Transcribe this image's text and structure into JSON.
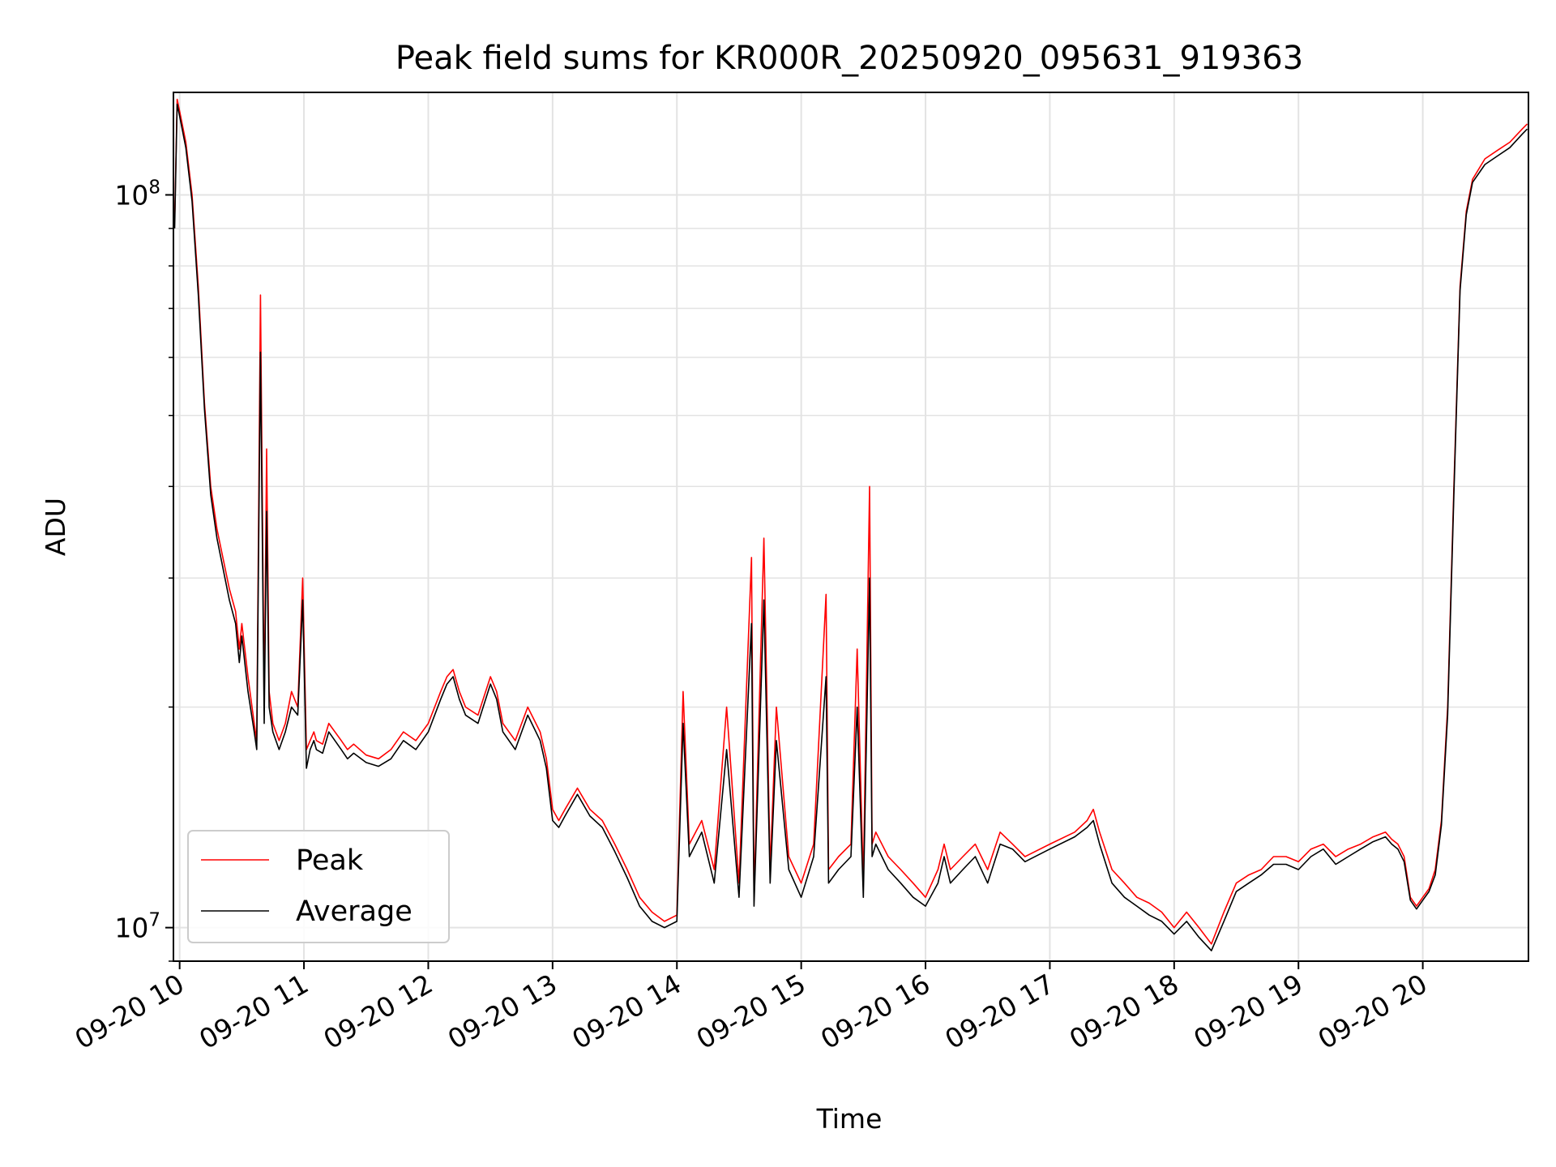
{
  "chart_data": {
    "type": "line",
    "title": "Peak field sums for KR000R_20250920_095631_919363",
    "xlabel": "Time",
    "ylabel": "ADU",
    "yscale": "log",
    "ylim": [
      9000000,
      138000000
    ],
    "xlim_hours": [
      9.95,
      20.85
    ],
    "x_ticks": [
      {
        "hour": 10,
        "label": "09-20 10"
      },
      {
        "hour": 11,
        "label": "09-20 11"
      },
      {
        "hour": 12,
        "label": "09-20 12"
      },
      {
        "hour": 13,
        "label": "09-20 13"
      },
      {
        "hour": 14,
        "label": "09-20 14"
      },
      {
        "hour": 15,
        "label": "09-20 15"
      },
      {
        "hour": 16,
        "label": "09-20 16"
      },
      {
        "hour": 17,
        "label": "09-20 17"
      },
      {
        "hour": 18,
        "label": "09-20 18"
      },
      {
        "hour": 19,
        "label": "09-20 19"
      },
      {
        "hour": 20,
        "label": "09-20 20"
      }
    ],
    "y_ticks_major": [
      {
        "value": 10000000,
        "base": "10",
        "exp": "7"
      },
      {
        "value": 100000000,
        "base": "10",
        "exp": "8"
      }
    ],
    "grid": true,
    "legend": "lower-left",
    "series": [
      {
        "name": "Peak",
        "color": "#ff0000",
        "x_hours": [
          9.96,
          9.98,
          10.0,
          10.05,
          10.1,
          10.15,
          10.2,
          10.25,
          10.3,
          10.4,
          10.45,
          10.48,
          10.5,
          10.55,
          10.6,
          10.62,
          10.65,
          10.68,
          10.7,
          10.72,
          10.75,
          10.8,
          10.85,
          10.9,
          10.95,
          10.99,
          11.02,
          11.05,
          11.08,
          11.1,
          11.15,
          11.2,
          11.3,
          11.35,
          11.4,
          11.5,
          11.6,
          11.7,
          11.8,
          11.9,
          12.0,
          12.1,
          12.15,
          12.2,
          12.25,
          12.3,
          12.4,
          12.5,
          12.55,
          12.6,
          12.7,
          12.8,
          12.9,
          12.95,
          13.0,
          13.05,
          13.1,
          13.2,
          13.3,
          13.4,
          13.5,
          13.6,
          13.7,
          13.8,
          13.9,
          14.0,
          14.05,
          14.1,
          14.2,
          14.3,
          14.4,
          14.5,
          14.6,
          14.62,
          14.7,
          14.75,
          14.8,
          14.9,
          15.0,
          15.1,
          15.2,
          15.22,
          15.3,
          15.4,
          15.45,
          15.5,
          15.55,
          15.57,
          15.6,
          15.7,
          15.8,
          15.9,
          16.0,
          16.1,
          16.15,
          16.2,
          16.3,
          16.4,
          16.5,
          16.6,
          16.7,
          16.8,
          17.0,
          17.2,
          17.3,
          17.35,
          17.4,
          17.5,
          17.6,
          17.7,
          17.8,
          17.9,
          18.0,
          18.1,
          18.2,
          18.3,
          18.4,
          18.5,
          18.6,
          18.7,
          18.8,
          18.9,
          19.0,
          19.1,
          19.2,
          19.3,
          19.4,
          19.5,
          19.6,
          19.7,
          19.75,
          19.8,
          19.85,
          19.9,
          19.95,
          20.0,
          20.05,
          20.1,
          20.15,
          20.2,
          20.25,
          20.3,
          20.35,
          20.4,
          20.5,
          20.6,
          20.7,
          20.8,
          20.84
        ],
        "values": [
          92000000,
          135000000,
          130000000,
          118000000,
          100000000,
          75000000,
          52000000,
          40000000,
          35000000,
          29000000,
          27000000,
          24000000,
          26000000,
          22000000,
          19000000,
          18000000,
          73000000,
          20000000,
          45000000,
          21000000,
          19000000,
          18000000,
          19000000,
          21000000,
          20000000,
          30000000,
          17500000,
          18000000,
          18500000,
          18000000,
          17800000,
          19000000,
          18000000,
          17500000,
          17800000,
          17200000,
          17000000,
          17500000,
          18500000,
          18000000,
          19000000,
          21000000,
          22000000,
          22500000,
          21000000,
          20000000,
          19500000,
          22000000,
          21000000,
          19000000,
          18000000,
          20000000,
          18500000,
          17000000,
          14500000,
          14000000,
          14500000,
          15500000,
          14500000,
          14000000,
          13000000,
          12000000,
          11000000,
          10500000,
          10200000,
          10400000,
          21000000,
          13000000,
          14000000,
          12000000,
          20000000,
          11500000,
          32000000,
          11000000,
          34000000,
          12000000,
          20000000,
          12500000,
          11500000,
          13000000,
          28500000,
          12000000,
          12500000,
          13000000,
          24000000,
          11500000,
          40000000,
          13000000,
          13500000,
          12500000,
          12000000,
          11500000,
          11000000,
          12000000,
          13000000,
          12000000,
          12500000,
          13000000,
          12000000,
          13500000,
          13000000,
          12500000,
          13000000,
          13500000,
          14000000,
          14500000,
          13500000,
          12000000,
          11500000,
          11000000,
          10800000,
          10500000,
          10000000,
          10500000,
          10000000,
          9500000,
          10500000,
          11500000,
          11800000,
          12000000,
          12500000,
          12500000,
          12300000,
          12800000,
          13000000,
          12500000,
          12800000,
          13000000,
          13300000,
          13500000,
          13200000,
          13000000,
          12500000,
          11000000,
          10700000,
          11000000,
          11300000,
          12000000,
          14000000,
          20000000,
          40000000,
          75000000,
          95000000,
          105000000,
          112000000,
          115000000,
          118000000,
          123000000,
          125000000
        ]
      },
      {
        "name": "Average",
        "color": "#000000",
        "x_hours": [
          9.96,
          9.98,
          10.0,
          10.05,
          10.1,
          10.15,
          10.2,
          10.25,
          10.3,
          10.4,
          10.45,
          10.48,
          10.5,
          10.55,
          10.6,
          10.62,
          10.65,
          10.68,
          10.7,
          10.72,
          10.75,
          10.8,
          10.85,
          10.9,
          10.95,
          10.99,
          11.02,
          11.05,
          11.08,
          11.1,
          11.15,
          11.2,
          11.3,
          11.35,
          11.4,
          11.5,
          11.6,
          11.7,
          11.8,
          11.9,
          12.0,
          12.1,
          12.15,
          12.2,
          12.25,
          12.3,
          12.4,
          12.5,
          12.55,
          12.6,
          12.7,
          12.8,
          12.9,
          12.95,
          13.0,
          13.05,
          13.1,
          13.2,
          13.3,
          13.4,
          13.5,
          13.6,
          13.7,
          13.8,
          13.9,
          14.0,
          14.05,
          14.1,
          14.2,
          14.3,
          14.4,
          14.5,
          14.6,
          14.62,
          14.7,
          14.75,
          14.8,
          14.9,
          15.0,
          15.1,
          15.2,
          15.22,
          15.3,
          15.4,
          15.45,
          15.5,
          15.55,
          15.57,
          15.6,
          15.7,
          15.8,
          15.9,
          16.0,
          16.1,
          16.15,
          16.2,
          16.3,
          16.4,
          16.5,
          16.6,
          16.7,
          16.8,
          17.0,
          17.2,
          17.3,
          17.35,
          17.4,
          17.5,
          17.6,
          17.7,
          17.8,
          17.9,
          18.0,
          18.1,
          18.2,
          18.3,
          18.4,
          18.5,
          18.6,
          18.7,
          18.8,
          18.9,
          19.0,
          19.1,
          19.2,
          19.3,
          19.4,
          19.5,
          19.6,
          19.7,
          19.75,
          19.8,
          19.85,
          19.9,
          19.95,
          20.0,
          20.05,
          20.1,
          20.15,
          20.2,
          20.25,
          20.3,
          20.35,
          20.4,
          20.5,
          20.6,
          20.7,
          20.8,
          20.84
        ],
        "values": [
          90000000,
          133000000,
          128000000,
          116000000,
          98000000,
          73000000,
          51000000,
          39000000,
          34000000,
          28000000,
          26000000,
          23000000,
          25000000,
          21000000,
          18500000,
          17500000,
          61000000,
          19000000,
          37000000,
          20000000,
          18500000,
          17500000,
          18500000,
          20000000,
          19500000,
          28000000,
          16500000,
          17500000,
          18000000,
          17500000,
          17300000,
          18500000,
          17500000,
          17000000,
          17300000,
          16800000,
          16600000,
          17000000,
          18000000,
          17500000,
          18500000,
          20500000,
          21500000,
          22000000,
          20500000,
          19500000,
          19000000,
          21500000,
          20500000,
          18500000,
          17500000,
          19500000,
          18000000,
          16500000,
          14000000,
          13700000,
          14200000,
          15200000,
          14200000,
          13700000,
          12700000,
          11700000,
          10700000,
          10200000,
          10000000,
          10200000,
          19000000,
          12500000,
          13500000,
          11500000,
          17500000,
          11000000,
          26000000,
          10700000,
          28000000,
          11500000,
          18000000,
          12000000,
          11000000,
          12500000,
          22000000,
          11500000,
          12000000,
          12500000,
          20000000,
          11000000,
          30000000,
          12500000,
          13000000,
          12000000,
          11500000,
          11000000,
          10700000,
          11500000,
          12500000,
          11500000,
          12000000,
          12500000,
          11500000,
          13000000,
          12800000,
          12300000,
          12800000,
          13300000,
          13700000,
          14000000,
          13000000,
          11500000,
          11000000,
          10700000,
          10400000,
          10200000,
          9800000,
          10200000,
          9700000,
          9300000,
          10200000,
          11200000,
          11500000,
          11800000,
          12200000,
          12200000,
          12000000,
          12500000,
          12800000,
          12200000,
          12500000,
          12800000,
          13100000,
          13300000,
          13000000,
          12800000,
          12300000,
          10900000,
          10600000,
          10900000,
          11200000,
          11800000,
          13800000,
          19500000,
          39000000,
          74000000,
          94000000,
          104000000,
          110000000,
          113000000,
          116000000,
          121000000,
          123000000
        ]
      }
    ]
  }
}
